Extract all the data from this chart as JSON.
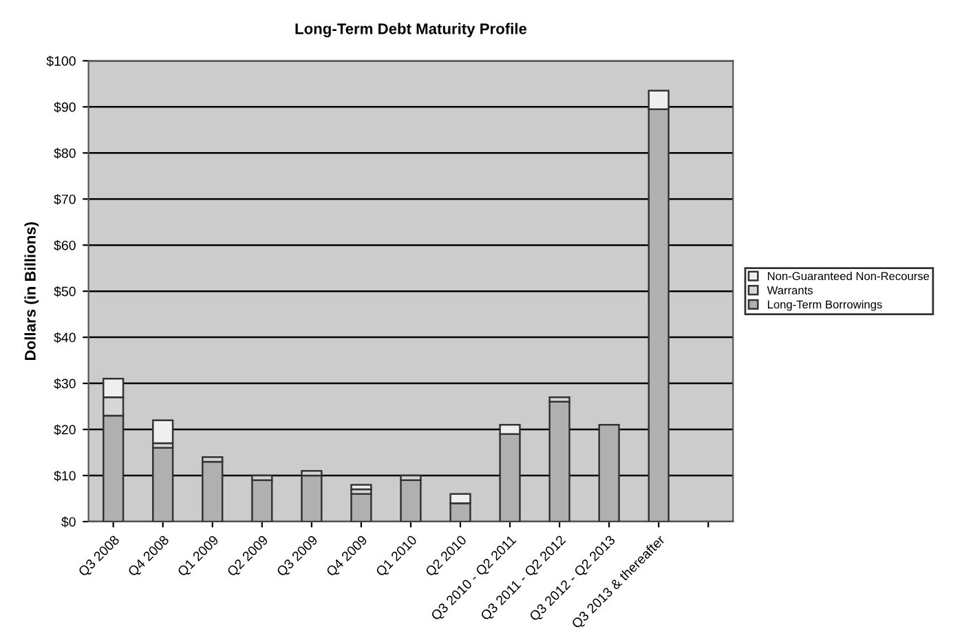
{
  "chart_data": {
    "type": "bar",
    "title": "Long-Term Debt Maturity Profile",
    "ylabel": "Dollars (in Billions)",
    "categories": [
      "Q3 2008",
      "Q4 2008",
      "Q1 2009",
      "Q2 2009",
      "Q3 2009",
      "Q4 2009",
      "Q1 2010",
      "Q2 2010",
      "Q3 2010 - Q2 2011",
      "Q3 2011 - Q2 2012",
      "Q3 2012 - Q2 2013",
      "Q3 2013 & thereafter",
      null
    ],
    "stacked": true,
    "series": [
      {
        "name": "Long-Term Borrowings",
        "color": "#b0b0b0",
        "values": [
          23,
          16,
          13,
          9,
          10,
          6,
          9,
          4,
          19,
          26,
          21,
          89.5,
          null
        ]
      },
      {
        "name": "Warrants",
        "color": "#d6d6d6",
        "values": [
          4,
          1,
          1,
          1,
          1,
          1,
          1,
          null,
          null,
          1,
          null,
          null,
          null
        ]
      },
      {
        "name": "Non-Guaranteed Non-Recourse",
        "color": "#efefef",
        "values": [
          4,
          5,
          null,
          null,
          null,
          1,
          null,
          2,
          2,
          null,
          null,
          4,
          null
        ]
      }
    ],
    "ylim": [
      0,
      100
    ],
    "yticks": [
      {
        "value": 0,
        "label": "$0"
      },
      {
        "value": 10,
        "label": "$10"
      },
      {
        "value": 20,
        "label": "$20"
      },
      {
        "value": 30,
        "label": "$30"
      },
      {
        "value": 40,
        "label": "$40"
      },
      {
        "value": 50,
        "label": "$50"
      },
      {
        "value": 60,
        "label": "$60"
      },
      {
        "value": 70,
        "label": "$70"
      },
      {
        "value": 80,
        "label": "$80"
      },
      {
        "value": 90,
        "label": "$90"
      },
      {
        "value": 100,
        "label": "$100"
      }
    ],
    "grid": "y",
    "legend": "right"
  }
}
